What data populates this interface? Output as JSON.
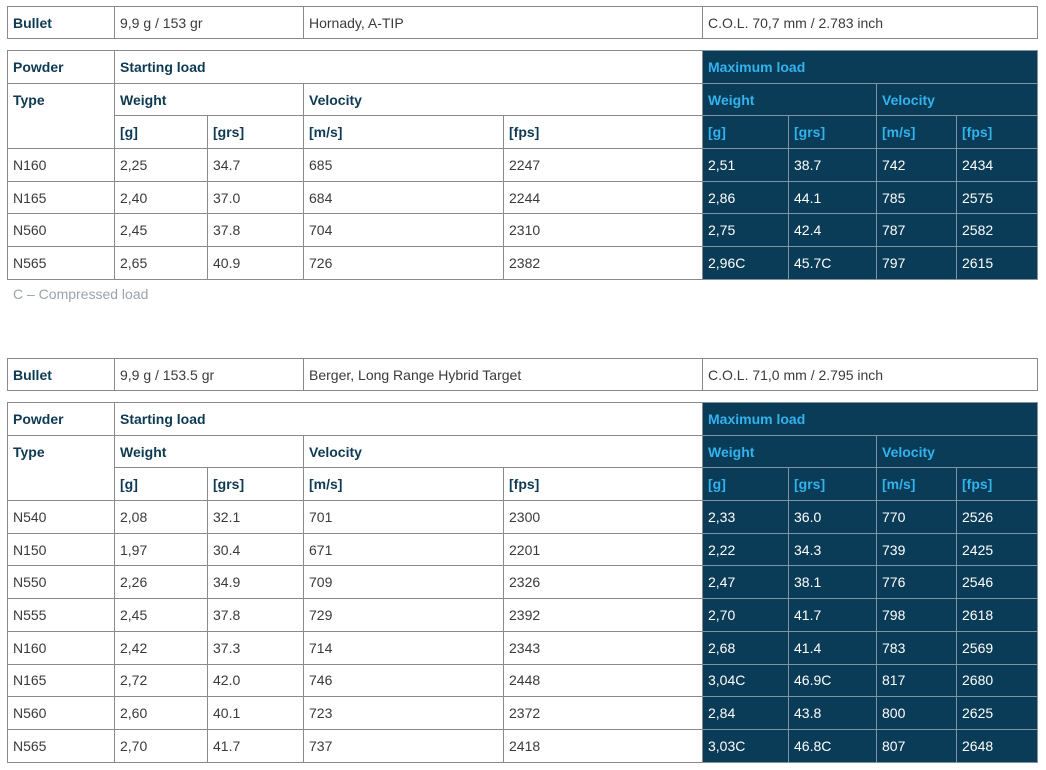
{
  "tables": [
    {
      "bullet": {
        "label": "Bullet",
        "weight": "9,9 g / 153 gr",
        "name": "Hornady, A-TIP",
        "col": "C.O.L. 70,7 mm / 2.783 inch"
      },
      "headers": {
        "powder": "Powder",
        "type": "Type",
        "starting_load": "Starting load",
        "maximum_load": "Maximum load",
        "weight": "Weight",
        "velocity": "Velocity",
        "unit_g": "[g]",
        "unit_grs": "[grs]",
        "unit_ms": "[m/s]",
        "unit_fps": "[fps]"
      },
      "rows": [
        [
          "N160",
          "2,25",
          "34.7",
          "685",
          "2247",
          "2,51",
          "38.7",
          "742",
          "2434"
        ],
        [
          "N165",
          "2,40",
          "37.0",
          "684",
          "2244",
          "2,86",
          "44.1",
          "785",
          "2575"
        ],
        [
          "N560",
          "2,45",
          "37.8",
          "704",
          "2310",
          "2,75",
          "42.4",
          "787",
          "2582"
        ],
        [
          "N565",
          "2,65",
          "40.9",
          "726",
          "2382",
          "2,96C",
          "45.7C",
          "797",
          "2615"
        ]
      ]
    },
    {
      "bullet": {
        "label": "Bullet",
        "weight": "9,9 g / 153.5 gr",
        "name": "Berger, Long Range Hybrid Target",
        "col": "C.O.L. 71,0 mm / 2.795 inch"
      },
      "headers": {
        "powder": "Powder",
        "type": "Type",
        "starting_load": "Starting load",
        "maximum_load": "Maximum load",
        "weight": "Weight",
        "velocity": "Velocity",
        "unit_g": "[g]",
        "unit_grs": "[grs]",
        "unit_ms": "[m/s]",
        "unit_fps": "[fps]"
      },
      "rows": [
        [
          "N540",
          "2,08",
          "32.1",
          "701",
          "2300",
          "2,33",
          "36.0",
          "770",
          "2526"
        ],
        [
          "N150",
          "1,97",
          "30.4",
          "671",
          "2201",
          "2,22",
          "34.3",
          "739",
          "2425"
        ],
        [
          "N550",
          "2,26",
          "34.9",
          "709",
          "2326",
          "2,47",
          "38.1",
          "776",
          "2546"
        ],
        [
          "N555",
          "2,45",
          "37.8",
          "729",
          "2392",
          "2,70",
          "41.7",
          "798",
          "2618"
        ],
        [
          "N160",
          "2,42",
          "37.3",
          "714",
          "2343",
          "2,68",
          "41.4",
          "783",
          "2569"
        ],
        [
          "N165",
          "2,72",
          "42.0",
          "746",
          "2448",
          "3,04C",
          "46.9C",
          "817",
          "2680"
        ],
        [
          "N560",
          "2,60",
          "40.1",
          "723",
          "2372",
          "2,84",
          "43.8",
          "800",
          "2625"
        ],
        [
          "N565",
          "2,70",
          "41.7",
          "737",
          "2418",
          "3,03C",
          "46.8C",
          "807",
          "2648"
        ]
      ]
    }
  ],
  "note": "C – Compressed load",
  "colors": {
    "max_bg": "#0a3b57",
    "max_header_text": "#33b3ee",
    "header_text": "#0d3a52"
  }
}
